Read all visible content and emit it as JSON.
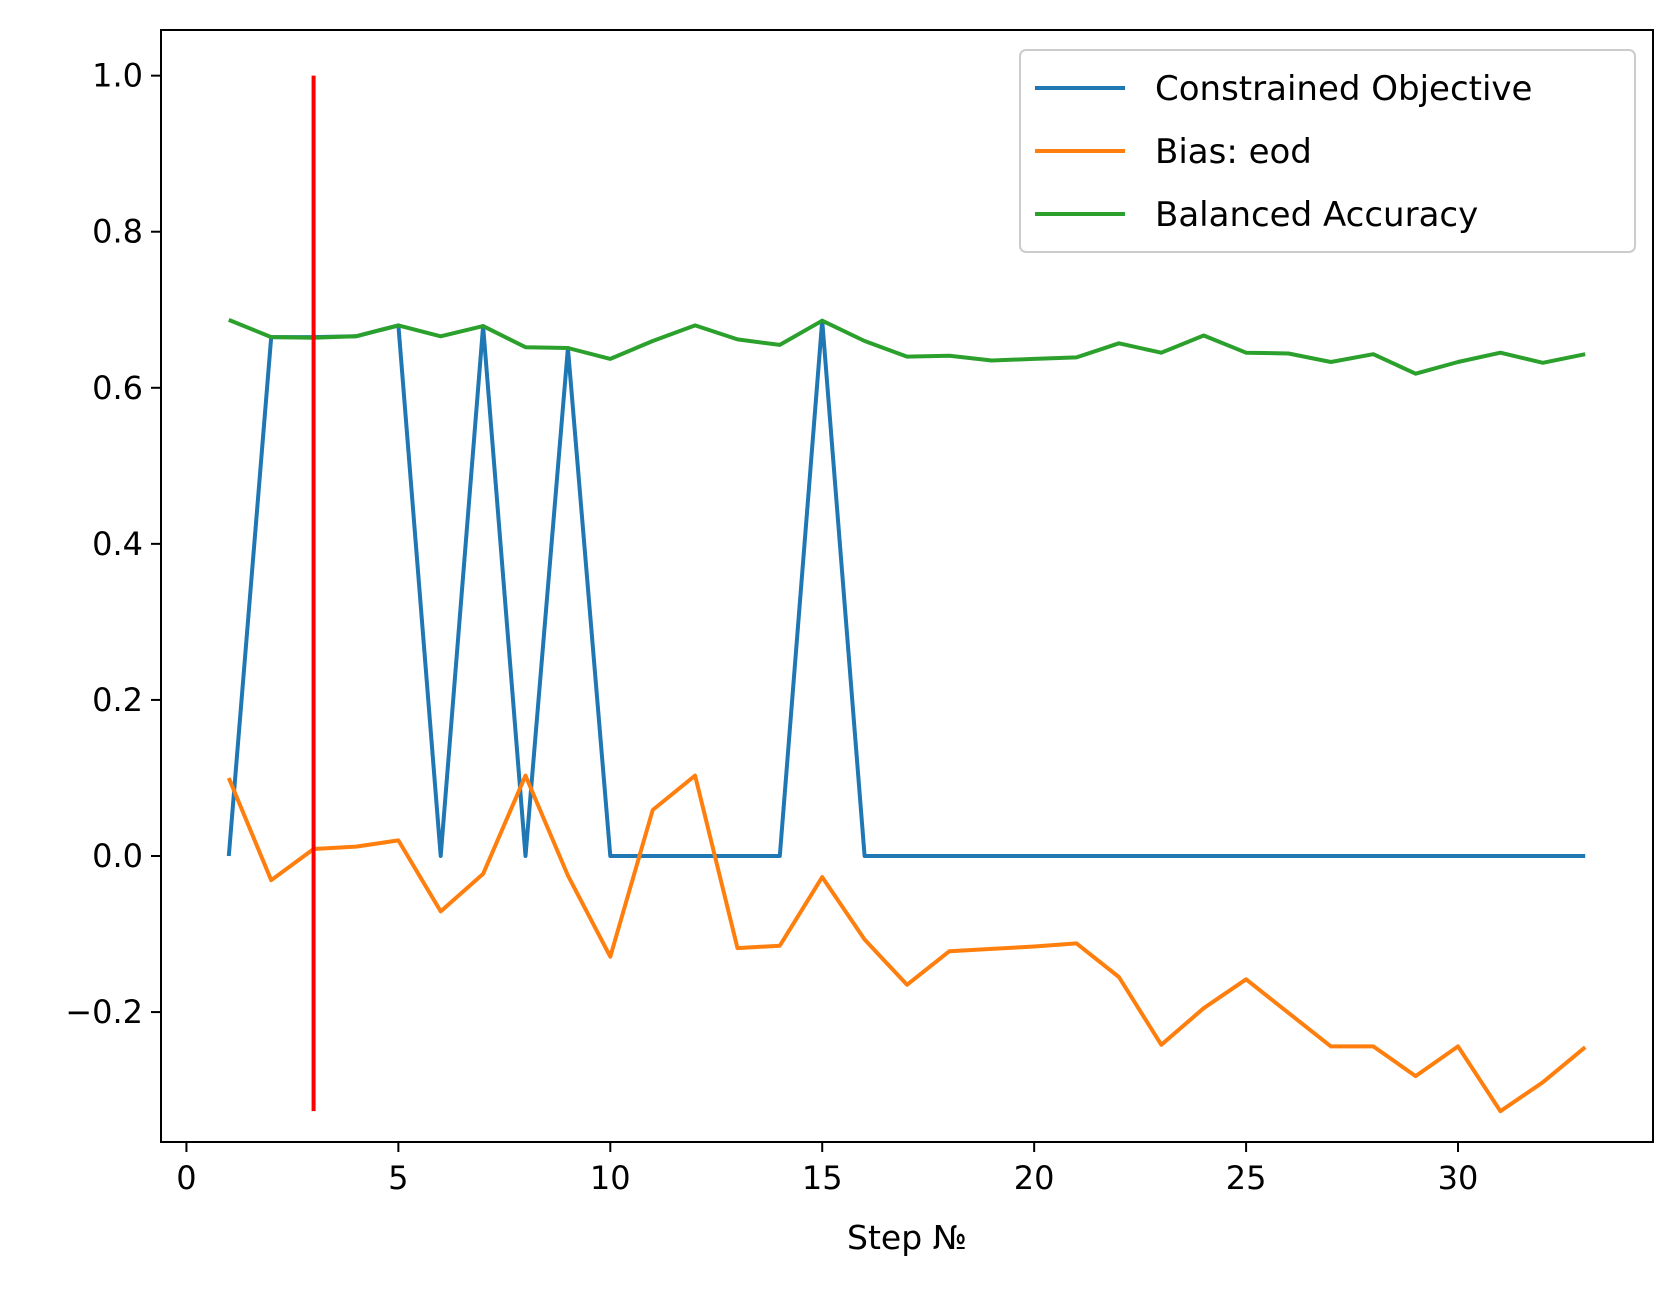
{
  "chart_data": {
    "type": "line",
    "title": "",
    "xlabel": "Step №",
    "ylabel": "",
    "xlim": [
      -0.6,
      34.6
    ],
    "ylim": [
      -0.3665,
      1.0585
    ],
    "x_ticks": [
      0,
      5,
      10,
      15,
      20,
      25,
      30
    ],
    "y_ticks": [
      -0.2,
      0.0,
      0.2,
      0.4,
      0.6,
      0.8,
      1.0
    ],
    "y_tick_labels": [
      "−0.2",
      "0.0",
      "0.2",
      "0.4",
      "0.6",
      "0.8",
      "1.0"
    ],
    "grid": false,
    "legend_position": "top-right",
    "x": [
      1,
      2,
      3,
      4,
      5,
      6,
      7,
      8,
      9,
      10,
      11,
      12,
      13,
      14,
      15,
      16,
      17,
      18,
      19,
      20,
      21,
      22,
      23,
      24,
      25,
      26,
      27,
      28,
      29,
      30,
      31,
      32,
      33
    ],
    "series": [
      {
        "name": "Constrained Objective",
        "color": "#1f77b4",
        "values": [
          0,
          0.665,
          0.665,
          0.666,
          0.68,
          0,
          0.679,
          0,
          0.651,
          0,
          0,
          0,
          0,
          0,
          0.686,
          0,
          0,
          0,
          0,
          0,
          0,
          0,
          0,
          0,
          0,
          0,
          0,
          0,
          0,
          0,
          0,
          0,
          0
        ]
      },
      {
        "name": "Bias: eod",
        "color": "#ff7f0e",
        "values": [
          0.1,
          -0.031,
          0.009,
          0.012,
          0.02,
          -0.071,
          -0.023,
          0.103,
          -0.025,
          -0.129,
          0.059,
          0.103,
          -0.118,
          -0.115,
          -0.027,
          -0.107,
          -0.165,
          -0.122,
          -0.119,
          -0.116,
          -0.112,
          -0.155,
          -0.242,
          -0.195,
          -0.158,
          -0.201,
          -0.244,
          -0.244,
          -0.282,
          -0.244,
          -0.327,
          -0.29,
          -0.245
        ]
      },
      {
        "name": "Balanced Accuracy",
        "color": "#2ca02c",
        "values": [
          0.687,
          0.665,
          0.664,
          0.666,
          0.68,
          0.666,
          0.679,
          0.652,
          0.651,
          0.637,
          0.66,
          0.68,
          0.662,
          0.655,
          0.686,
          0.66,
          0.64,
          0.641,
          0.635,
          0.637,
          0.639,
          0.657,
          0.645,
          0.667,
          0.645,
          0.644,
          0.633,
          0.643,
          0.618,
          0.633,
          0.645,
          0.632,
          0.643
        ]
      }
    ],
    "marker_line": {
      "color": "#ff0000",
      "x": 3,
      "y_range": [
        -0.327,
        1.0
      ]
    }
  }
}
